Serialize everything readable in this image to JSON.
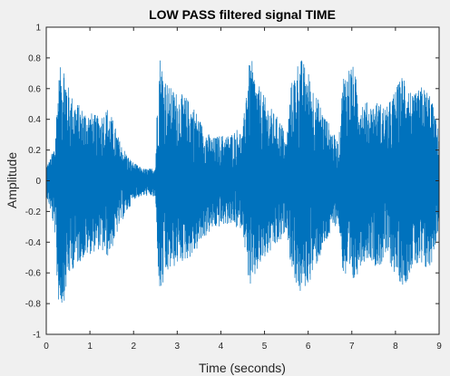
{
  "chart_data": {
    "type": "line",
    "title": "LOW PASS filtered signal TIME",
    "xlabel": "Time (seconds)",
    "ylabel": "Amplitude",
    "xlim": [
      0,
      9
    ],
    "ylim": [
      -1,
      1
    ],
    "xticks": [
      "0",
      "1",
      "2",
      "3",
      "4",
      "5",
      "6",
      "7",
      "8",
      "9"
    ],
    "yticks": [
      "-1",
      "-0.8",
      "-0.6",
      "-0.4",
      "-0.2",
      "0",
      "0.2",
      "0.4",
      "0.6",
      "0.8",
      "1"
    ],
    "grid": false,
    "legend": "none",
    "series": [
      {
        "color": "#0072bd",
        "envelope": {
          "x": [
            0.0,
            0.1,
            0.2,
            0.25,
            0.3,
            0.4,
            0.5,
            0.6,
            0.8,
            1.0,
            1.2,
            1.4,
            1.5,
            1.7,
            1.9,
            2.0,
            2.2,
            2.4,
            2.5,
            2.55,
            2.6,
            2.7,
            2.8,
            3.0,
            3.2,
            3.4,
            3.6,
            3.8,
            4.0,
            4.2,
            4.4,
            4.5,
            4.6,
            4.7,
            4.8,
            5.0,
            5.2,
            5.4,
            5.5,
            5.6,
            5.8,
            6.0,
            6.2,
            6.4,
            6.6,
            6.7,
            6.8,
            7.0,
            7.2,
            7.4,
            7.6,
            7.8,
            8.0,
            8.2,
            8.4,
            8.6,
            8.8,
            9.0
          ],
          "upper": [
            0.1,
            0.15,
            0.25,
            0.55,
            0.72,
            0.8,
            0.62,
            0.55,
            0.48,
            0.45,
            0.42,
            0.48,
            0.42,
            0.25,
            0.15,
            0.12,
            0.08,
            0.08,
            0.1,
            0.6,
            0.84,
            0.72,
            0.62,
            0.58,
            0.55,
            0.48,
            0.35,
            0.28,
            0.3,
            0.3,
            0.35,
            0.3,
            0.72,
            0.8,
            0.66,
            0.55,
            0.45,
            0.38,
            0.25,
            0.62,
            0.82,
            0.72,
            0.55,
            0.42,
            0.3,
            0.25,
            0.7,
            0.78,
            0.55,
            0.5,
            0.52,
            0.48,
            0.6,
            0.72,
            0.55,
            0.62,
            0.58,
            0.3
          ],
          "lower": [
            -0.1,
            -0.2,
            -0.35,
            -0.7,
            -0.85,
            -0.8,
            -0.65,
            -0.58,
            -0.52,
            -0.48,
            -0.45,
            -0.5,
            -0.45,
            -0.28,
            -0.18,
            -0.12,
            -0.1,
            -0.1,
            -0.12,
            -0.5,
            -0.78,
            -0.68,
            -0.6,
            -0.55,
            -0.52,
            -0.48,
            -0.38,
            -0.32,
            -0.3,
            -0.28,
            -0.32,
            -0.3,
            -0.58,
            -0.75,
            -0.62,
            -0.52,
            -0.45,
            -0.4,
            -0.3,
            -0.55,
            -0.75,
            -0.68,
            -0.55,
            -0.42,
            -0.3,
            -0.28,
            -0.62,
            -0.72,
            -0.55,
            -0.5,
            -0.58,
            -0.5,
            -0.62,
            -0.7,
            -0.55,
            -0.6,
            -0.58,
            -0.3
          ]
        }
      }
    ]
  }
}
